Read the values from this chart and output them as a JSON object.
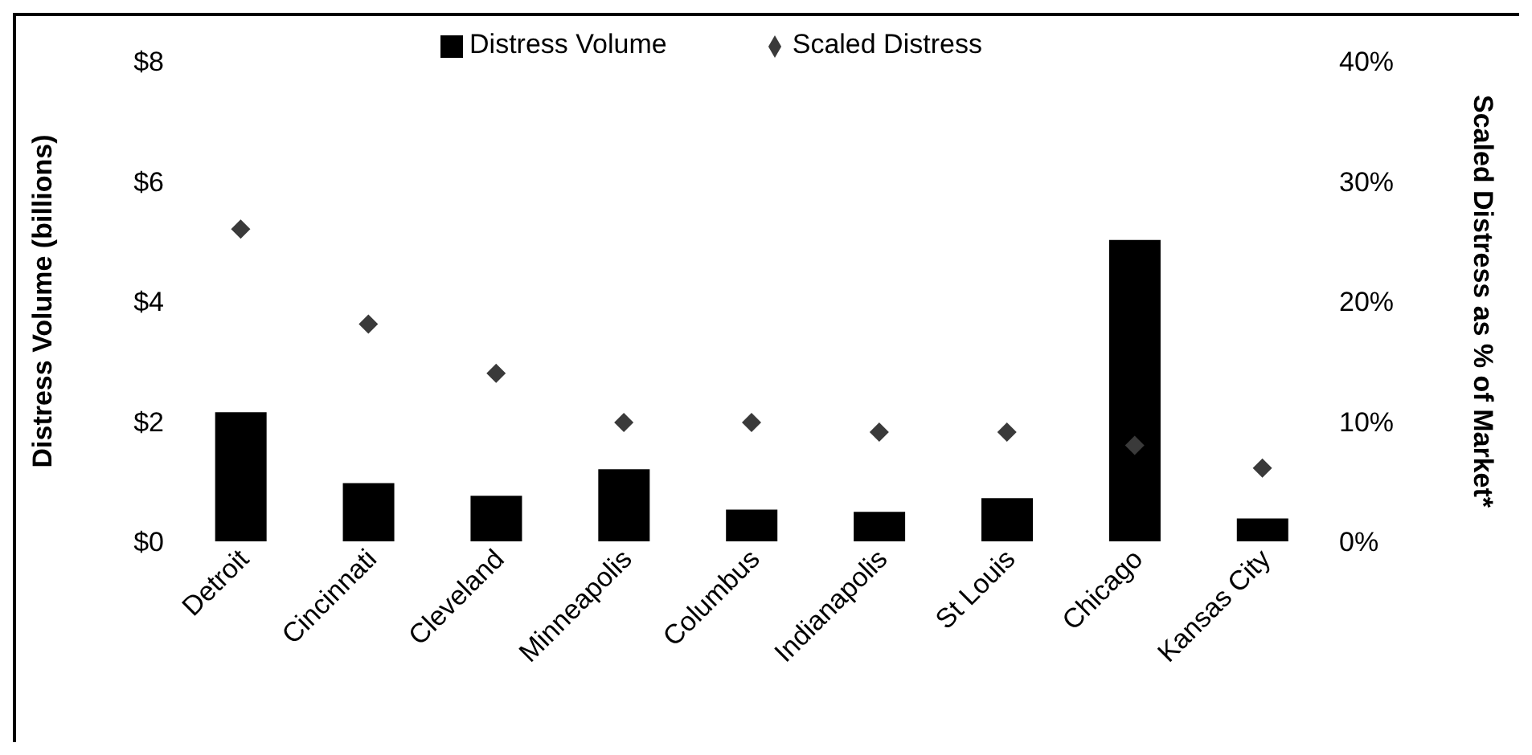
{
  "chart_data": {
    "type": "bar",
    "ylabel": "Distress Volume (billions)",
    "y2label": "Scaled Distress as % of Market*",
    "categories": [
      "Detroit",
      "Cincinnati",
      "Cleveland",
      "Minneapolis",
      "Columbus",
      "Indianapolis",
      "St Louis",
      "Chicago",
      "Kansas City"
    ],
    "series": [
      {
        "name": "Distress Volume",
        "color": "#000000",
        "values": [
          2.15,
          0.97,
          0.76,
          1.2,
          0.53,
          0.49,
          0.72,
          5.02,
          0.38
        ]
      },
      {
        "name": "Scaled Distress",
        "type": "scatter",
        "axis": "y2",
        "color": "#3a3a3a",
        "marker": "diamond",
        "values": [
          26,
          18.1,
          14,
          9.9,
          9.9,
          9.1,
          9.1,
          8,
          6.1
        ]
      }
    ],
    "ylim": [
      0,
      8
    ],
    "yticks": [
      {
        "value": 0,
        "label": "$0"
      },
      {
        "value": 2,
        "label": "$2"
      },
      {
        "value": 4,
        "label": "$4"
      },
      {
        "value": 6,
        "label": "$6"
      },
      {
        "value": 8,
        "label": "$8"
      }
    ],
    "y2lim": [
      0,
      40
    ],
    "y2ticks": [
      {
        "value": 0,
        "label": "0%"
      },
      {
        "value": 10,
        "label": "10%"
      },
      {
        "value": 20,
        "label": "20%"
      },
      {
        "value": 30,
        "label": "30%"
      },
      {
        "value": 40,
        "label": "40%"
      }
    ],
    "legend": "top",
    "grid": false
  }
}
